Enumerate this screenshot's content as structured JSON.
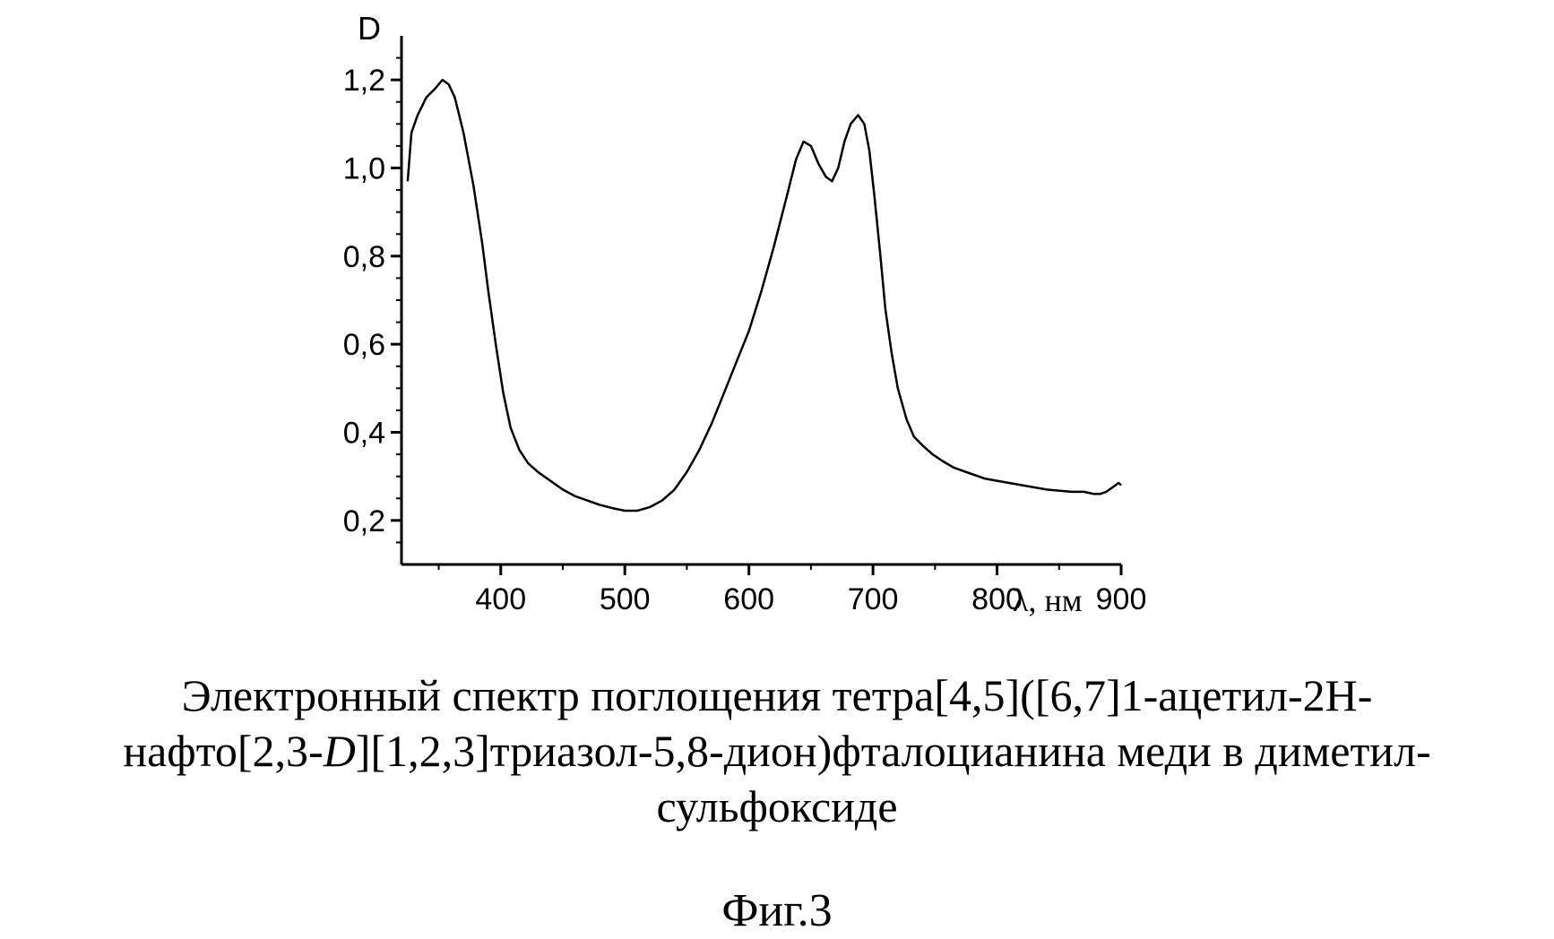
{
  "chart_data": {
    "type": "line",
    "xlabel": "λ, нм",
    "ylabel": "D",
    "xlim": [
      320,
      900
    ],
    "ylim": [
      0.1,
      1.3
    ],
    "x_ticks": [
      400,
      500,
      600,
      700,
      800,
      900
    ],
    "y_ticks": [
      0.2,
      0.4,
      0.6,
      0.8,
      1.0,
      1.2
    ],
    "x_tick_labels": [
      "400",
      "500",
      "600",
      "700",
      "800",
      "900"
    ],
    "y_tick_labels": [
      "0,2",
      "0,4",
      "0,6",
      "0,8",
      "1,0",
      "1,2"
    ],
    "grid": false,
    "legend": "none",
    "series": [
      {
        "color": "#000000",
        "x": [
          325,
          328,
          333,
          340,
          347,
          353,
          358,
          363,
          370,
          378,
          385,
          390,
          396,
          402,
          408,
          415,
          422,
          430,
          440,
          450,
          460,
          470,
          480,
          490,
          500,
          510,
          520,
          530,
          540,
          550,
          560,
          570,
          580,
          590,
          600,
          610,
          620,
          630,
          638,
          644,
          650,
          656,
          662,
          667,
          672,
          677,
          682,
          688,
          693,
          697,
          701,
          706,
          710,
          715,
          720,
          727,
          733,
          740,
          748,
          756,
          765,
          775,
          790,
          800,
          820,
          840,
          860,
          870,
          878,
          883,
          888,
          893,
          898,
          900
        ],
        "y": [
          0.97,
          1.08,
          1.12,
          1.16,
          1.18,
          1.2,
          1.19,
          1.16,
          1.08,
          0.96,
          0.83,
          0.72,
          0.6,
          0.49,
          0.41,
          0.36,
          0.33,
          0.31,
          0.29,
          0.27,
          0.255,
          0.245,
          0.235,
          0.228,
          0.222,
          0.222,
          0.23,
          0.245,
          0.27,
          0.31,
          0.36,
          0.42,
          0.49,
          0.56,
          0.63,
          0.72,
          0.82,
          0.93,
          1.02,
          1.06,
          1.05,
          1.01,
          0.98,
          0.97,
          1.0,
          1.06,
          1.1,
          1.12,
          1.1,
          1.04,
          0.94,
          0.8,
          0.68,
          0.58,
          0.5,
          0.43,
          0.39,
          0.37,
          0.35,
          0.335,
          0.32,
          0.31,
          0.295,
          0.29,
          0.28,
          0.27,
          0.265,
          0.265,
          0.26,
          0.26,
          0.265,
          0.275,
          0.285,
          0.28
        ]
      }
    ]
  },
  "caption": {
    "line1": "Электронный спектр поглощения тетра[4,5]([6,7]1-ацетил-2Н-",
    "line2_pre": "нафто[2,3-",
    "line2_italic": "D",
    "line2_post": "][1,2,3]триазол-5,8-дион)фталоцианина меди в диметил-",
    "line3": "сульфоксиде"
  },
  "figure_label": "Фиг.3"
}
